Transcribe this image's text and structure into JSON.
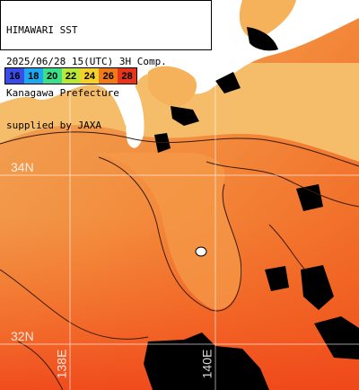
{
  "title": {
    "lines": [
      "HIMAWARI SST",
      "2025/06/28 15(UTC) 3H Comp.",
      "Kanagawa Prefecture",
      "supplied by JAXA"
    ]
  },
  "legend": {
    "entries": [
      {
        "label": "16",
        "color": "#3a4de6"
      },
      {
        "label": "18",
        "color": "#1ea8f0"
      },
      {
        "label": "20",
        "color": "#3ae08a"
      },
      {
        "label": "22",
        "color": "#b8e83a"
      },
      {
        "label": "24",
        "color": "#f5d12a"
      },
      {
        "label": "26",
        "color": "#f07a1a"
      },
      {
        "label": "28",
        "color": "#e8341a"
      }
    ]
  },
  "grid_labels": {
    "lat_34": "34N",
    "lat_32": "32N",
    "lon_138": "138E",
    "lon_140": "140E"
  },
  "colors": {
    "land": "#ffffff",
    "cloud_no_data": "#000000",
    "sea_warm": "#f5641e",
    "sea_cool": "#f5b05a",
    "grid": "#ffffff"
  }
}
